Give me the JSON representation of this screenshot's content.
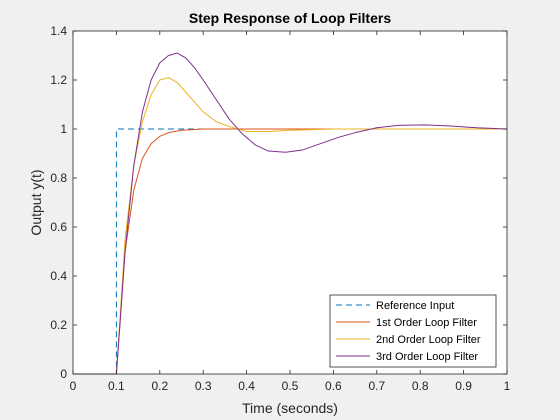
{
  "chart_data": {
    "type": "line",
    "title": "Step Response of Loop Filters",
    "xlabel": "Time (seconds)",
    "ylabel": "Output y(t)",
    "xlim": [
      0,
      1
    ],
    "ylim": [
      0,
      1.4
    ],
    "xticks": [
      0,
      0.1,
      0.2,
      0.3,
      0.4,
      0.5,
      0.6,
      0.7,
      0.8,
      0.9,
      1
    ],
    "xtick_labels": [
      "0",
      "0.1",
      "0.2",
      "0.3",
      "0.4",
      "0.5",
      "0.6",
      "0.7",
      "0.8",
      "0.9",
      "1"
    ],
    "yticks": [
      0,
      0.2,
      0.4,
      0.6,
      0.8,
      1,
      1.2,
      1.4
    ],
    "ytick_labels": [
      "0",
      "0.2",
      "0.4",
      "0.6",
      "0.8",
      "1",
      "1.2",
      "1.4"
    ],
    "grid": false,
    "legend_position": "bottom-right",
    "series": [
      {
        "name": "Reference Input",
        "color": "#0072bd",
        "dash": "dashed",
        "x": [
          0,
          0.1,
          0.1,
          1
        ],
        "y": [
          0,
          0,
          1,
          1
        ]
      },
      {
        "name": "1st Order Loop Filter",
        "color": "#d95319",
        "dash": "solid",
        "x": [
          0,
          0.1,
          0.12,
          0.14,
          0.16,
          0.18,
          0.2,
          0.22,
          0.25,
          0.3,
          0.35,
          0.4,
          0.5,
          0.6,
          0.7,
          0.8,
          0.9,
          1
        ],
        "y": [
          0,
          0,
          0.5,
          0.75,
          0.88,
          0.94,
          0.97,
          0.985,
          0.995,
          1,
          1,
          1,
          1,
          1,
          1,
          1,
          1,
          1
        ]
      },
      {
        "name": "2nd Order Loop Filter",
        "color": "#edb120",
        "dash": "solid",
        "x": [
          0,
          0.1,
          0.12,
          0.14,
          0.16,
          0.18,
          0.2,
          0.22,
          0.24,
          0.26,
          0.28,
          0.3,
          0.33,
          0.36,
          0.4,
          0.45,
          0.5,
          0.6,
          0.7,
          0.8,
          0.9,
          1
        ],
        "y": [
          0,
          0,
          0.55,
          0.85,
          1.03,
          1.14,
          1.2,
          1.21,
          1.19,
          1.15,
          1.11,
          1.07,
          1.03,
          1.01,
          0.99,
          0.99,
          0.995,
          1,
          1,
          1,
          1,
          1
        ]
      },
      {
        "name": "3rd Order Loop Filter",
        "color": "#7e2f8e",
        "dash": "solid",
        "x": [
          0,
          0.1,
          0.12,
          0.14,
          0.16,
          0.18,
          0.2,
          0.22,
          0.24,
          0.26,
          0.28,
          0.3,
          0.33,
          0.36,
          0.39,
          0.42,
          0.45,
          0.49,
          0.53,
          0.57,
          0.61,
          0.65,
          0.7,
          0.75,
          0.81,
          0.87,
          0.93,
          1
        ],
        "y": [
          0,
          0,
          0.5,
          0.85,
          1.07,
          1.2,
          1.27,
          1.3,
          1.31,
          1.29,
          1.25,
          1.2,
          1.12,
          1.04,
          0.98,
          0.935,
          0.91,
          0.905,
          0.915,
          0.94,
          0.965,
          0.985,
          1.005,
          1.015,
          1.017,
          1.012,
          1.005,
          1
        ]
      }
    ]
  }
}
